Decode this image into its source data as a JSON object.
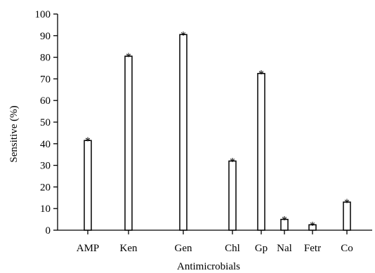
{
  "chart_data": {
    "type": "bar",
    "xlabel": "Antimicrobials",
    "ylabel": "Sensitive (%)",
    "ylim": [
      0,
      100
    ],
    "yticks": [
      0,
      10,
      20,
      30,
      40,
      50,
      60,
      70,
      80,
      90,
      100
    ],
    "grid": false,
    "categories": [
      "AMP",
      "Ken",
      "Gen",
      "Chl",
      "Gp",
      "Nal",
      "Fetr",
      "Co"
    ],
    "values": [
      41.5,
      80.5,
      90.5,
      32,
      72.5,
      5,
      2.5,
      13
    ],
    "annotations": [
      "*",
      "*",
      "*",
      "*",
      "*",
      "*",
      "*",
      "*"
    ],
    "bar_fill": "#ffffff",
    "bar_stroke": "#000000"
  }
}
